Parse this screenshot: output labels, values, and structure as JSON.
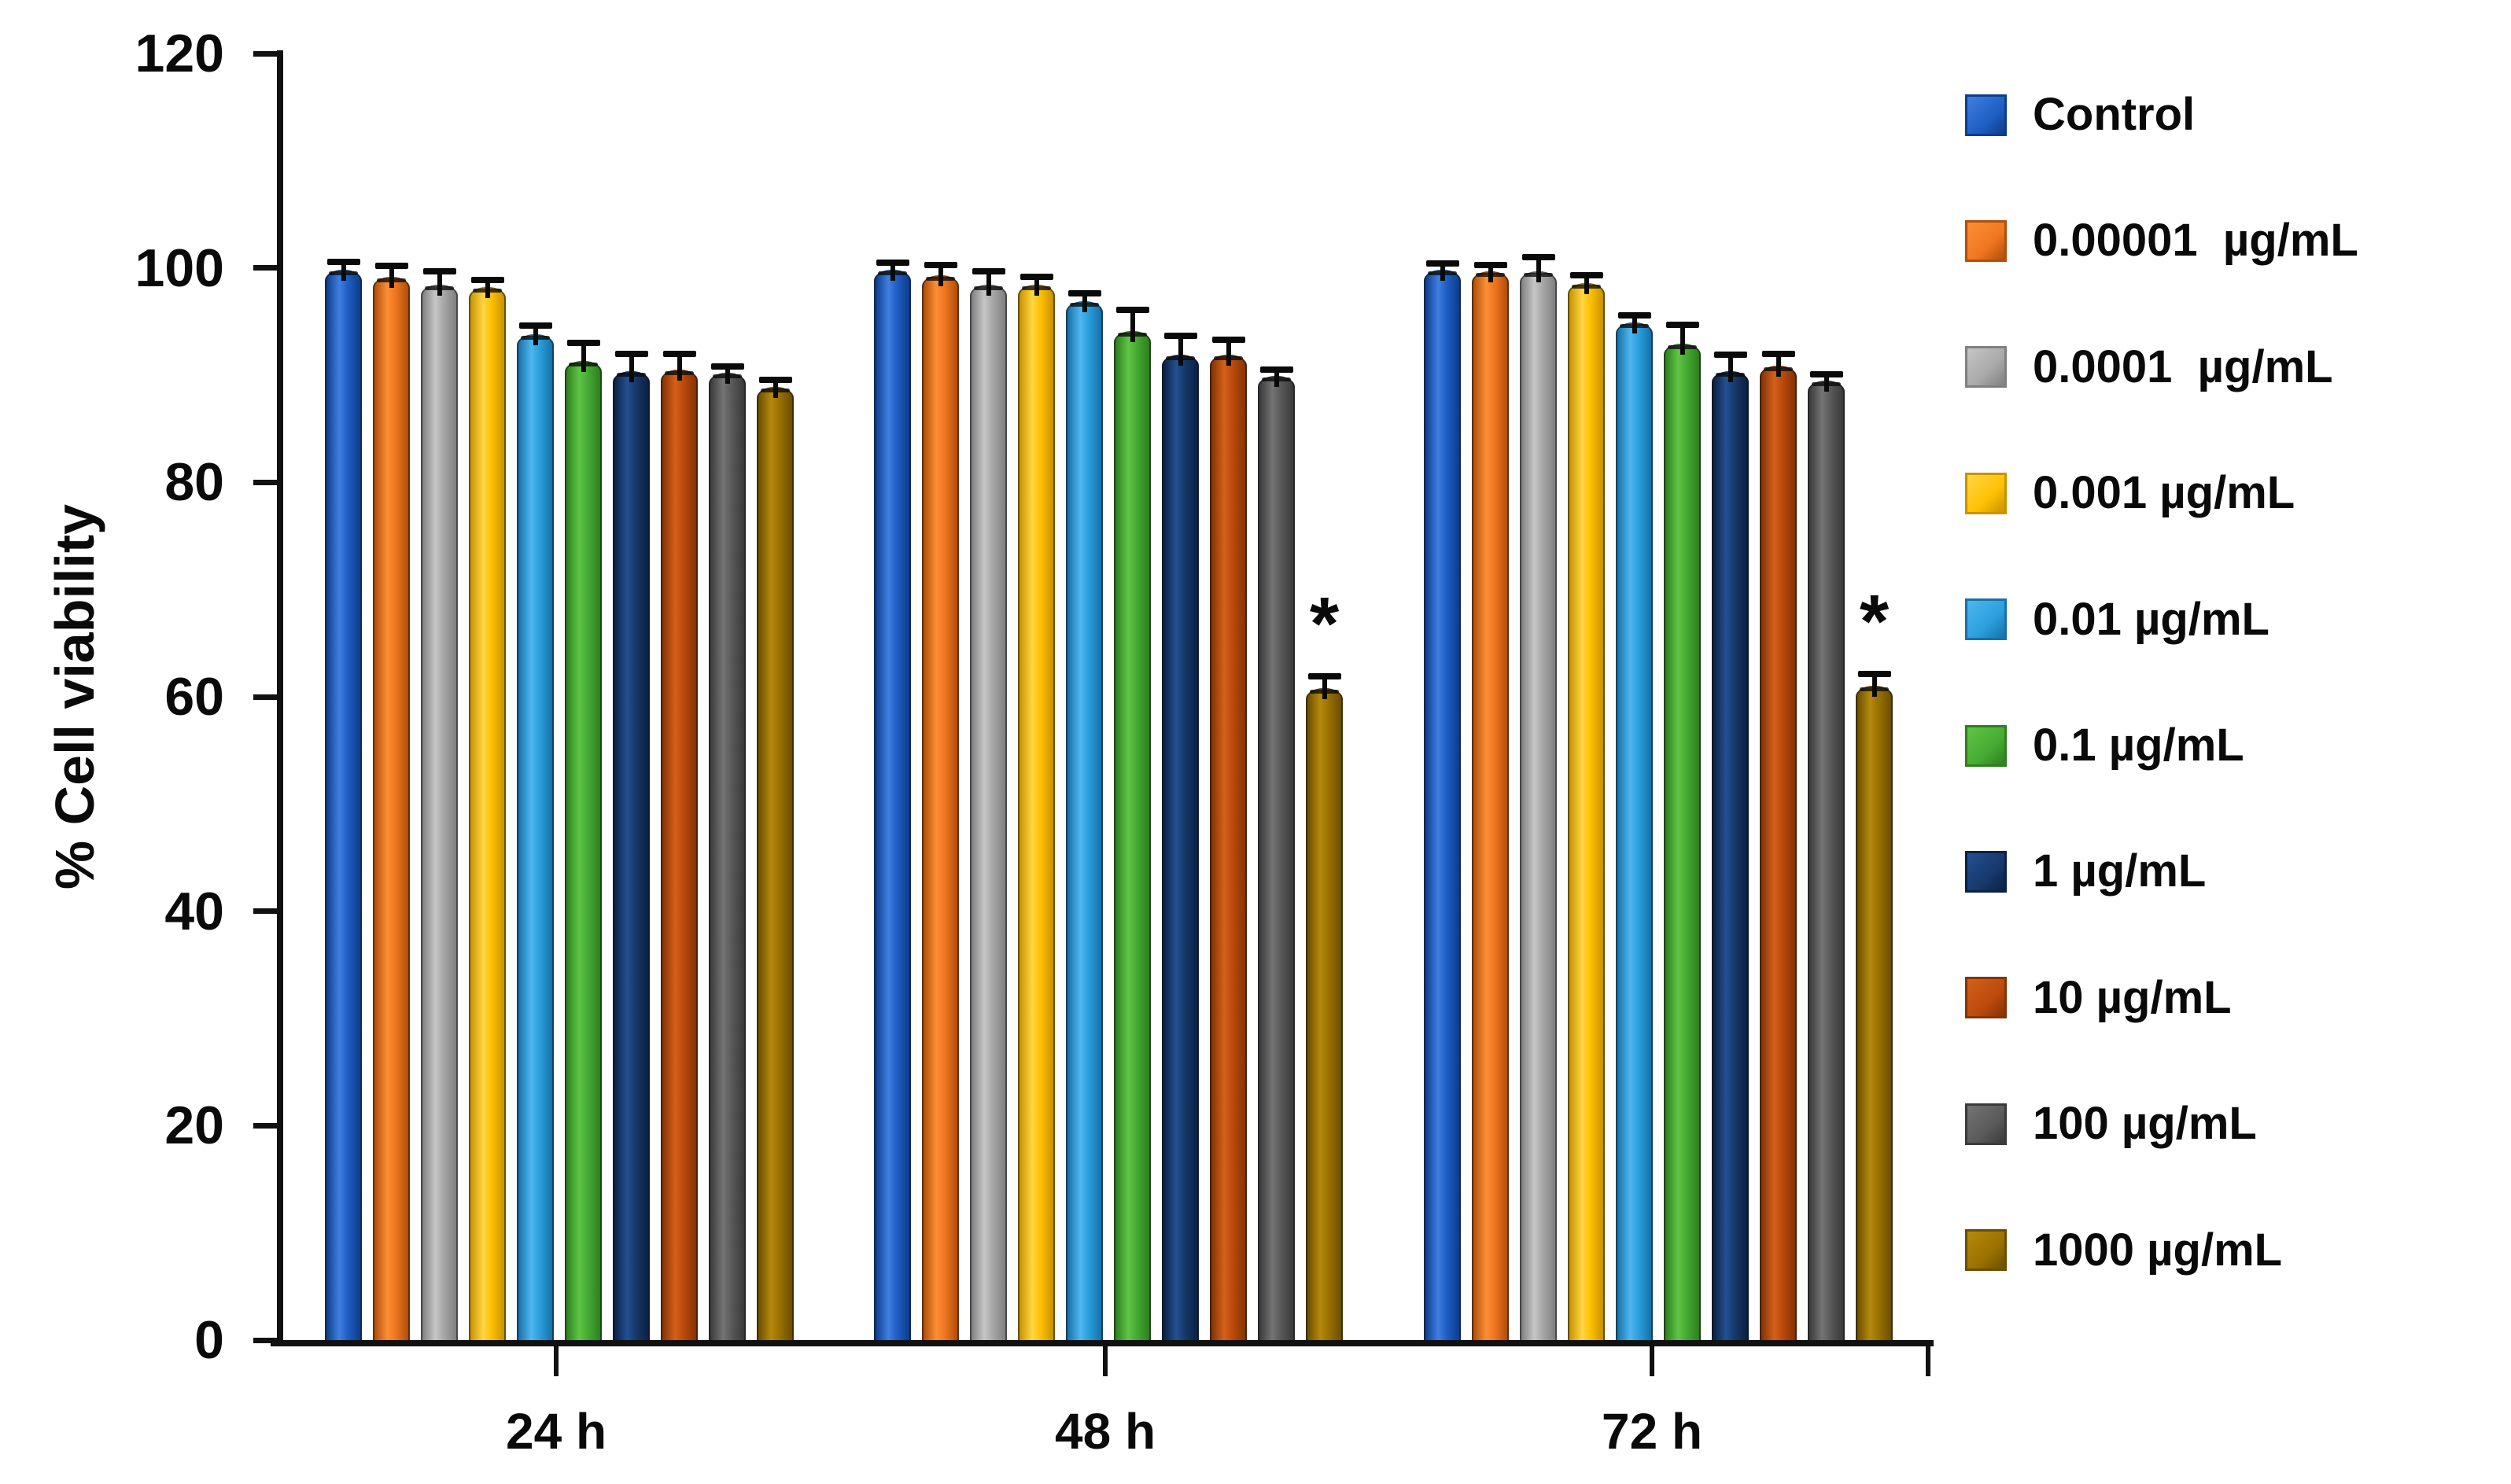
{
  "chart_data": {
    "type": "bar",
    "title": "",
    "xlabel": "",
    "ylabel": "% Cell viability",
    "ylim": [
      0,
      120
    ],
    "yticks": [
      0,
      20,
      40,
      60,
      80,
      100,
      120
    ],
    "categories": [
      "24 h",
      "48 h",
      "72 h"
    ],
    "grid": "off",
    "legend_position": "right",
    "error_bars": "upper whisker with cap",
    "significance_marker": "*",
    "series": [
      {
        "name": "Control",
        "color": "#1F5FC4",
        "edge": "#0D3D8C",
        "light": "#3F7FE0",
        "values": [
          99.8,
          99.8,
          99.8
        ],
        "errors": [
          0.5,
          0.4,
          0.3
        ],
        "sig": [
          false,
          false,
          false
        ]
      },
      {
        "name": "0.00001  µg/mL",
        "color": "#F07622",
        "edge": "#B04E0A",
        "light": "#FB8F35",
        "values": [
          99.2,
          99.3,
          99.7
        ],
        "errors": [
          0.7,
          0.7,
          0.3
        ],
        "sig": [
          false,
          false,
          false
        ]
      },
      {
        "name": "0.0001  µg/mL",
        "color": "#A8A8A8",
        "edge": "#808080",
        "light": "#C6C6C6",
        "values": [
          98.4,
          98.4,
          99.7
        ],
        "errors": [
          1.0,
          1.0,
          1.0
        ],
        "sig": [
          false,
          false,
          false
        ]
      },
      {
        "name": "0.001 µg/mL",
        "color": "#FFC003",
        "edge": "#C79300",
        "light": "#FFD644",
        "values": [
          98.2,
          98.4,
          98.6
        ],
        "errors": [
          0.4,
          0.5,
          0.4
        ],
        "sig": [
          false,
          false,
          false
        ]
      },
      {
        "name": "0.01 µg/mL",
        "color": "#2B9FDD",
        "edge": "#1671A8",
        "light": "#4FB6EE",
        "values": [
          93.8,
          96.9,
          94.9
        ],
        "errors": [
          0.5,
          0.4,
          0.4
        ],
        "sig": [
          false,
          false,
          false
        ]
      },
      {
        "name": "0.1 µg/mL",
        "color": "#46AB33",
        "edge": "#2E7F1F",
        "light": "#5FC546",
        "values": [
          91.3,
          94.1,
          92.9
        ],
        "errors": [
          1.4,
          1.7,
          1.5
        ],
        "sig": [
          false,
          false,
          false
        ]
      },
      {
        "name": "1 µg/mL",
        "color": "#17396B",
        "edge": "#0B2145",
        "light": "#235093",
        "values": [
          90.4,
          91.9,
          90.4
        ],
        "errors": [
          1.3,
          1.5,
          1.2
        ],
        "sig": [
          false,
          false,
          false
        ]
      },
      {
        "name": "10 µg/mL",
        "color": "#BC4A0C",
        "edge": "#843305",
        "light": "#D4601A",
        "values": [
          90.5,
          91.9,
          90.9
        ],
        "errors": [
          1.2,
          1.1,
          0.8
        ],
        "sig": [
          false,
          false,
          false
        ]
      },
      {
        "name": "100 µg/mL",
        "color": "#5A5A5A",
        "edge": "#3A3A3A",
        "light": "#747474",
        "values": [
          90.2,
          89.9,
          89.5
        ],
        "errors": [
          0.3,
          0.3,
          0.3
        ],
        "sig": [
          false,
          false,
          false
        ]
      },
      {
        "name": "1000 µg/mL",
        "color": "#9A7100",
        "edge": "#6B4E00",
        "light": "#B5890D",
        "values": [
          88.9,
          60.8,
          61.0
        ],
        "errors": [
          0.4,
          0.8,
          0.8
        ],
        "sig": [
          false,
          true,
          true
        ]
      }
    ]
  }
}
